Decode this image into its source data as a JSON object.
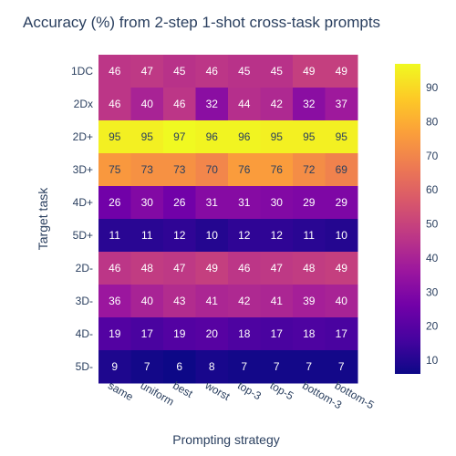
{
  "chart_data": {
    "type": "heatmap",
    "title": "Accuracy (%) from 2-step 1-shot cross-task prompts",
    "xlabel": "Prompting strategy",
    "ylabel": "Target task",
    "x_categories": [
      "same",
      "uniform",
      "best",
      "worst",
      "top-3",
      "top-5",
      "bottom-3",
      "bottom-5"
    ],
    "y_categories": [
      "1DC",
      "2Dx",
      "2D+",
      "3D+",
      "4D+",
      "5D+",
      "2D-",
      "3D-",
      "4D-",
      "5D-"
    ],
    "values": [
      [
        46,
        47,
        45,
        46,
        45,
        45,
        49,
        49
      ],
      [
        46,
        40,
        46,
        32,
        44,
        42,
        32,
        37
      ],
      [
        95,
        95,
        97,
        96,
        96,
        95,
        95,
        95
      ],
      [
        75,
        73,
        73,
        70,
        76,
        76,
        72,
        69
      ],
      [
        26,
        30,
        26,
        31,
        31,
        30,
        29,
        29
      ],
      [
        11,
        11,
        12,
        10,
        12,
        12,
        11,
        10
      ],
      [
        46,
        48,
        47,
        49,
        46,
        47,
        48,
        49
      ],
      [
        36,
        40,
        43,
        41,
        42,
        41,
        39,
        40
      ],
      [
        19,
        17,
        19,
        20,
        18,
        17,
        18,
        17
      ],
      [
        9,
        7,
        6,
        8,
        7,
        7,
        7,
        7
      ]
    ],
    "zrange": [
      6,
      97
    ],
    "colorscale": "Plasma",
    "colorbar_ticks": [
      10,
      20,
      30,
      40,
      50,
      60,
      70,
      80,
      90
    ],
    "colors": {
      "text": "#2a3f5f",
      "stops": [
        "#0d0887",
        "#46039f",
        "#7201a8",
        "#9c179e",
        "#bd3786",
        "#d8576b",
        "#ed7953",
        "#fb9f3a",
        "#fdca26",
        "#f0f921"
      ]
    }
  }
}
